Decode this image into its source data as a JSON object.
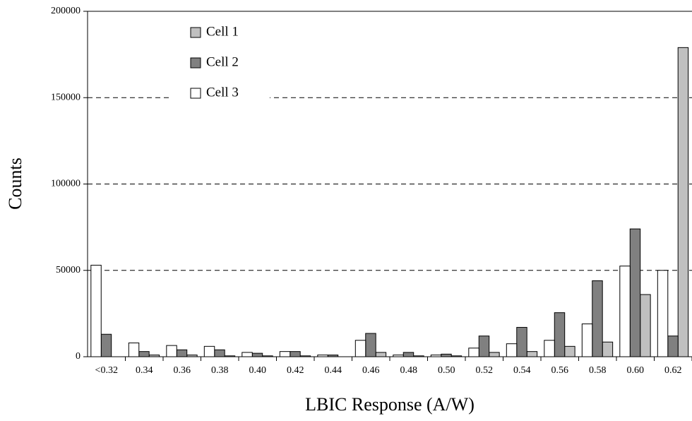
{
  "chart_data": {
    "type": "bar",
    "x_label": "LBIC Response (A/W)",
    "y_label": "Counts",
    "categories": [
      "<0.32",
      "0.34",
      "0.36",
      "0.38",
      "0.40",
      "0.42",
      "0.44",
      "0.46",
      "0.48",
      "0.50",
      "0.52",
      "0.54",
      "0.56",
      "0.58",
      "0.60",
      "0.62"
    ],
    "series": [
      {
        "name": "Cell 1",
        "color": "#c0c0c0",
        "values": [
          0,
          1000,
          1000,
          500,
          500,
          500,
          0,
          2500,
          500,
          500,
          2500,
          3000,
          6000,
          8500,
          36000,
          179000
        ]
      },
      {
        "name": "Cell 2",
        "color": "#808080",
        "values": [
          13000,
          3000,
          4000,
          4000,
          2000,
          3000,
          1000,
          13500,
          2500,
          1500,
          12000,
          17000,
          25500,
          44000,
          74000,
          12000
        ]
      },
      {
        "name": "Cell 3",
        "color": "#ffffff",
        "values": [
          53000,
          8000,
          6500,
          6000,
          2500,
          3000,
          1000,
          9500,
          1000,
          1000,
          5000,
          7500,
          9500,
          19000,
          52500,
          50000
        ]
      }
    ],
    "ylim": [
      0,
      200000
    ],
    "yticks": [
      0,
      50000,
      100000,
      150000,
      200000
    ],
    "grid": true
  }
}
